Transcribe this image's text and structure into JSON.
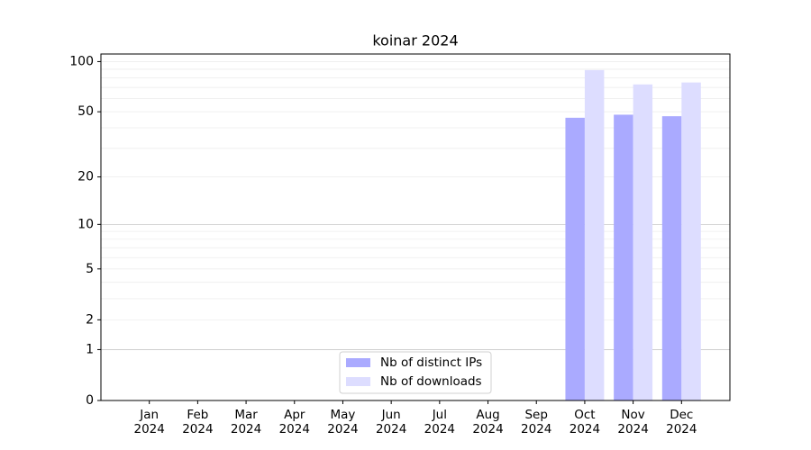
{
  "chart_data": {
    "type": "bar",
    "title": "koinar 2024",
    "categories": [
      "Jan 2024",
      "Feb 2024",
      "Mar 2024",
      "Apr 2024",
      "May 2024",
      "Jun 2024",
      "Jul 2024",
      "Aug 2024",
      "Sep 2024",
      "Oct 2024",
      "Nov 2024",
      "Dec 2024"
    ],
    "series": [
      {
        "name": "Nb of distinct IPs",
        "color": "#aaaaff",
        "values": [
          0,
          0,
          0,
          0,
          0,
          0,
          0,
          0,
          0,
          46,
          48,
          47
        ]
      },
      {
        "name": "Nb of downloads",
        "color": "#ddddff",
        "values": [
          0,
          0,
          0,
          0,
          0,
          0,
          0,
          0,
          0,
          89,
          73,
          75
        ]
      }
    ],
    "yscale": "log1p",
    "ylim": [
      0,
      111
    ],
    "yticks": [
      0,
      1,
      2,
      5,
      10,
      20,
      50,
      100
    ],
    "yminor": [
      3,
      4,
      6,
      7,
      8,
      9,
      30,
      40,
      60,
      70,
      80,
      90
    ],
    "grid": true,
    "grid_strong": [
      1,
      10
    ],
    "legend": "lower center"
  }
}
